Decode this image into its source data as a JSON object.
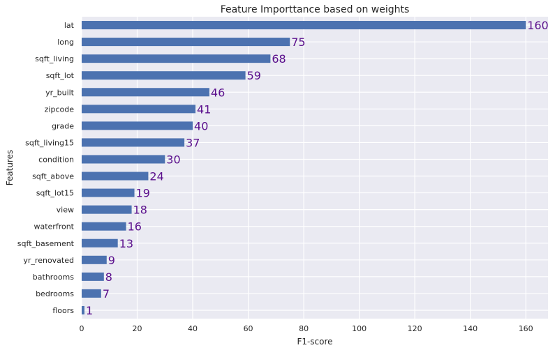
{
  "chart_data": {
    "type": "bar",
    "orientation": "horizontal",
    "title": "Feature Importtance based on weights",
    "xlabel": "F1-score",
    "ylabel": "Features",
    "xlim": [
      0,
      168
    ],
    "xticks": [
      0,
      20,
      40,
      60,
      80,
      100,
      120,
      140,
      160
    ],
    "grid": true,
    "categories": [
      "lat",
      "long",
      "sqft_living",
      "sqft_lot",
      "yr_built",
      "zipcode",
      "grade",
      "sqft_living15",
      "condition",
      "sqft_above",
      "sqft_lot15",
      "view",
      "waterfront",
      "sqft_basement",
      "yr_renovated",
      "bathrooms",
      "bedrooms",
      "floors"
    ],
    "values": [
      160,
      75,
      68,
      59,
      46,
      41,
      40,
      37,
      30,
      24,
      19,
      18,
      16,
      13,
      9,
      8,
      7,
      1
    ],
    "colors": {
      "bar": "#4c72b0",
      "background": "#eaeaf2",
      "grid": "#ffffff",
      "data_label": "#5a0f8c"
    }
  }
}
